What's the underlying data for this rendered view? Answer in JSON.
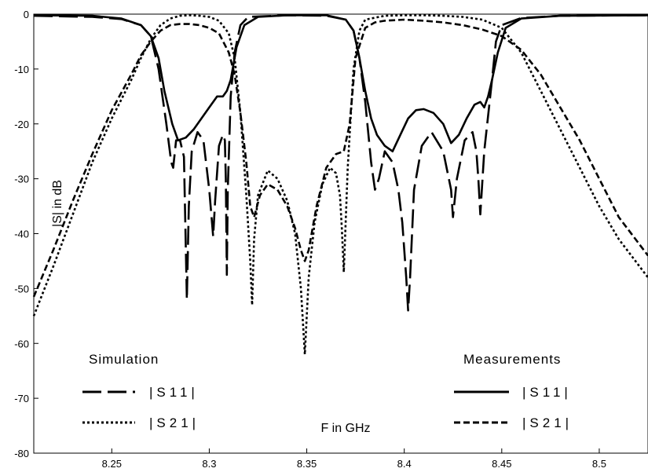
{
  "chart_data": {
    "type": "line",
    "xlabel": "F  in GHz",
    "ylabel": "|S| in dB",
    "xlim": [
      8.21,
      8.525
    ],
    "ylim": [
      -80,
      0
    ],
    "x_ticks": [
      "8.25",
      "8.3",
      "8.35",
      "8.4",
      "8.45",
      "8.5"
    ],
    "y_ticks": [
      "0",
      "-10",
      "-20",
      "-30",
      "-40",
      "-50",
      "-60",
      "-70",
      "-80"
    ],
    "grid": false,
    "legend": {
      "simulation_title": "Simulation",
      "measurements_title": "Measurements",
      "sim_s11": "|S11|",
      "sim_s21": "|S21|",
      "meas_s11": "|S11|",
      "meas_s21": "|S21|"
    },
    "series": [
      {
        "name": "|S11|",
        "group": "Simulation",
        "style": "long-dash",
        "x": [
          8.21,
          8.24,
          8.255,
          8.265,
          8.27,
          8.274,
          8.278,
          8.2805,
          8.2815,
          8.283,
          8.285,
          8.287,
          8.2885,
          8.2895,
          8.291,
          8.294,
          8.297,
          8.3,
          8.302,
          8.303,
          8.305,
          8.307,
          8.308,
          8.3085,
          8.309,
          8.3095,
          8.311,
          8.313,
          8.316,
          8.32,
          8.34,
          8.36,
          8.37,
          8.374,
          8.377,
          8.38,
          8.383,
          8.385,
          8.387,
          8.39,
          8.394,
          8.397,
          8.399,
          8.401,
          8.402,
          8.403,
          8.405,
          8.409,
          8.414,
          8.42,
          8.424,
          8.425,
          8.427,
          8.431,
          8.435,
          8.437,
          8.438,
          8.439,
          8.441,
          8.445,
          8.447,
          8.45,
          8.46,
          8.48,
          8.525
        ],
        "y": [
          -0.3,
          -0.5,
          -0.9,
          -2,
          -4,
          -10,
          -20,
          -27,
          -28,
          -23,
          -23,
          -26,
          -52,
          -35,
          -25,
          -21.5,
          -23,
          -32,
          -40.5,
          -34,
          -24,
          -22,
          -23,
          -30,
          -47.5,
          -32,
          -15,
          -7,
          -2,
          -0.5,
          -0.2,
          -0.3,
          -1,
          -3,
          -8,
          -16,
          -27,
          -32,
          -30,
          -25,
          -27,
          -32,
          -38,
          -48,
          -54,
          -48,
          -32,
          -24,
          -21.5,
          -25,
          -32,
          -37,
          -30,
          -23,
          -21.5,
          -25,
          -30,
          -36.5,
          -25,
          -12,
          -5,
          -2,
          -0.7,
          -0.3,
          -0.2
        ]
      },
      {
        "name": "|S21|",
        "group": "Simulation",
        "style": "dotted",
        "x": [
          8.21,
          8.22,
          8.23,
          8.24,
          8.25,
          8.26,
          8.265,
          8.27,
          8.275,
          8.28,
          8.285,
          8.29,
          8.295,
          8.3,
          8.305,
          8.31,
          8.313,
          8.316,
          8.319,
          8.321,
          8.322,
          8.323,
          8.325,
          8.33,
          8.335,
          8.34,
          8.344,
          8.347,
          8.349,
          8.351,
          8.354,
          8.358,
          8.362,
          8.365,
          8.367,
          8.368,
          8.369,
          8.371,
          8.374,
          8.377,
          8.38,
          8.39,
          8.4,
          8.41,
          8.42,
          8.43,
          8.44,
          8.45,
          8.46,
          8.47,
          8.48,
          8.49,
          8.5,
          8.51,
          8.525
        ],
        "y": [
          -55,
          -46,
          -36.5,
          -27,
          -19,
          -12,
          -8,
          -4.5,
          -2,
          -0.8,
          -0.3,
          -0.2,
          -0.3,
          -0.5,
          -1.2,
          -3.5,
          -8,
          -18,
          -33,
          -45,
          -53,
          -41,
          -33,
          -28.5,
          -30,
          -34,
          -40,
          -50,
          -62,
          -48,
          -38,
          -31,
          -28,
          -29,
          -33,
          -39,
          -47,
          -28,
          -10,
          -3,
          -1,
          -0.3,
          -0.2,
          -0.2,
          -0.3,
          -0.5,
          -1,
          -2.5,
          -7,
          -14,
          -21,
          -28,
          -35,
          -41,
          -48
        ]
      },
      {
        "name": "|S11|",
        "group": "Measurements",
        "style": "solid",
        "x": [
          8.21,
          8.24,
          8.255,
          8.265,
          8.27,
          8.274,
          8.277,
          8.281,
          8.284,
          8.288,
          8.292,
          8.296,
          8.3,
          8.304,
          8.307,
          8.309,
          8.311,
          8.314,
          8.318,
          8.325,
          8.34,
          8.36,
          8.37,
          8.374,
          8.377,
          8.38,
          8.383,
          8.386,
          8.39,
          8.394,
          8.398,
          8.402,
          8.406,
          8.41,
          8.415,
          8.42,
          8.424,
          8.428,
          8.432,
          8.436,
          8.439,
          8.441,
          8.443,
          8.445,
          8.448,
          8.452,
          8.46,
          8.48,
          8.525
        ],
        "y": [
          -0.2,
          -0.3,
          -0.8,
          -2,
          -4,
          -8,
          -14,
          -20,
          -23,
          -22.5,
          -21,
          -19,
          -17,
          -15,
          -15,
          -14,
          -12,
          -6,
          -2,
          -0.5,
          -0.2,
          -0.2,
          -1,
          -3,
          -8,
          -14,
          -19,
          -22,
          -24,
          -25,
          -22,
          -19,
          -17.5,
          -17.3,
          -18,
          -20,
          -23.5,
          -22,
          -19,
          -16.5,
          -16,
          -17,
          -15,
          -12,
          -7,
          -2.5,
          -0.8,
          -0.3,
          -0.2
        ]
      },
      {
        "name": "|S21|",
        "group": "Measurements",
        "style": "short-dash",
        "x": [
          8.21,
          8.22,
          8.23,
          8.24,
          8.25,
          8.26,
          8.265,
          8.27,
          8.275,
          8.28,
          8.285,
          8.29,
          8.295,
          8.3,
          8.305,
          8.31,
          8.313,
          8.316,
          8.319,
          8.321,
          8.323,
          8.326,
          8.33,
          8.335,
          8.34,
          8.344,
          8.347,
          8.349,
          8.351,
          8.355,
          8.36,
          8.365,
          8.369,
          8.372,
          8.375,
          8.38,
          8.385,
          8.39,
          8.4,
          8.41,
          8.42,
          8.43,
          8.44,
          8.45,
          8.46,
          8.47,
          8.48,
          8.49,
          8.5,
          8.51,
          8.525
        ],
        "y": [
          -51.5,
          -43,
          -34,
          -25.5,
          -17.5,
          -11,
          -7.5,
          -5,
          -3,
          -2,
          -1.8,
          -1.8,
          -2,
          -2.5,
          -3.5,
          -7,
          -11,
          -18,
          -27,
          -35,
          -37,
          -33,
          -31,
          -32,
          -35,
          -39,
          -43,
          -45,
          -43,
          -35,
          -28,
          -25.5,
          -25,
          -20,
          -8,
          -2.5,
          -1.5,
          -1.2,
          -1,
          -1.2,
          -1.5,
          -2,
          -2.8,
          -4,
          -6.5,
          -11,
          -17,
          -23,
          -30,
          -37,
          -44
        ]
      }
    ]
  }
}
